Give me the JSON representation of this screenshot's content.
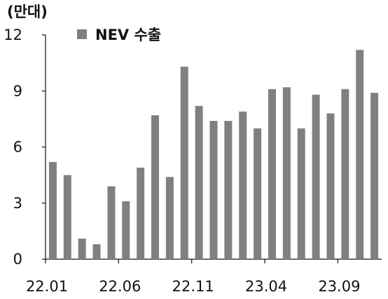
{
  "chart_data": {
    "type": "bar",
    "unit_label": "(만대)",
    "series": [
      {
        "name": "NEV 수출",
        "color": "#808080",
        "values": [
          5.2,
          4.5,
          1.1,
          0.8,
          3.9,
          3.1,
          4.9,
          7.7,
          4.4,
          10.3,
          8.2,
          7.4,
          7.4,
          7.9,
          7.0,
          9.1,
          9.2,
          7.0,
          8.8,
          7.8,
          9.1,
          11.2,
          8.9
        ]
      }
    ],
    "categories": [
      "22.01",
      "22.02",
      "22.03",
      "22.04",
      "22.05",
      "22.06",
      "22.07",
      "22.08",
      "22.09",
      "22.10",
      "22.11",
      "22.12",
      "23.01",
      "23.02",
      "23.03",
      "23.04",
      "23.05",
      "23.06",
      "23.07",
      "23.08",
      "23.09",
      "23.10",
      "23.11"
    ],
    "x_tick_labels": [
      "22.01",
      "22.06",
      "22.11",
      "23.04",
      "23.09"
    ],
    "y_ticks": [
      "0",
      "3",
      "6",
      "9",
      "12"
    ],
    "ylim": [
      0,
      12
    ],
    "grid": false,
    "legend_position": "top-left"
  }
}
